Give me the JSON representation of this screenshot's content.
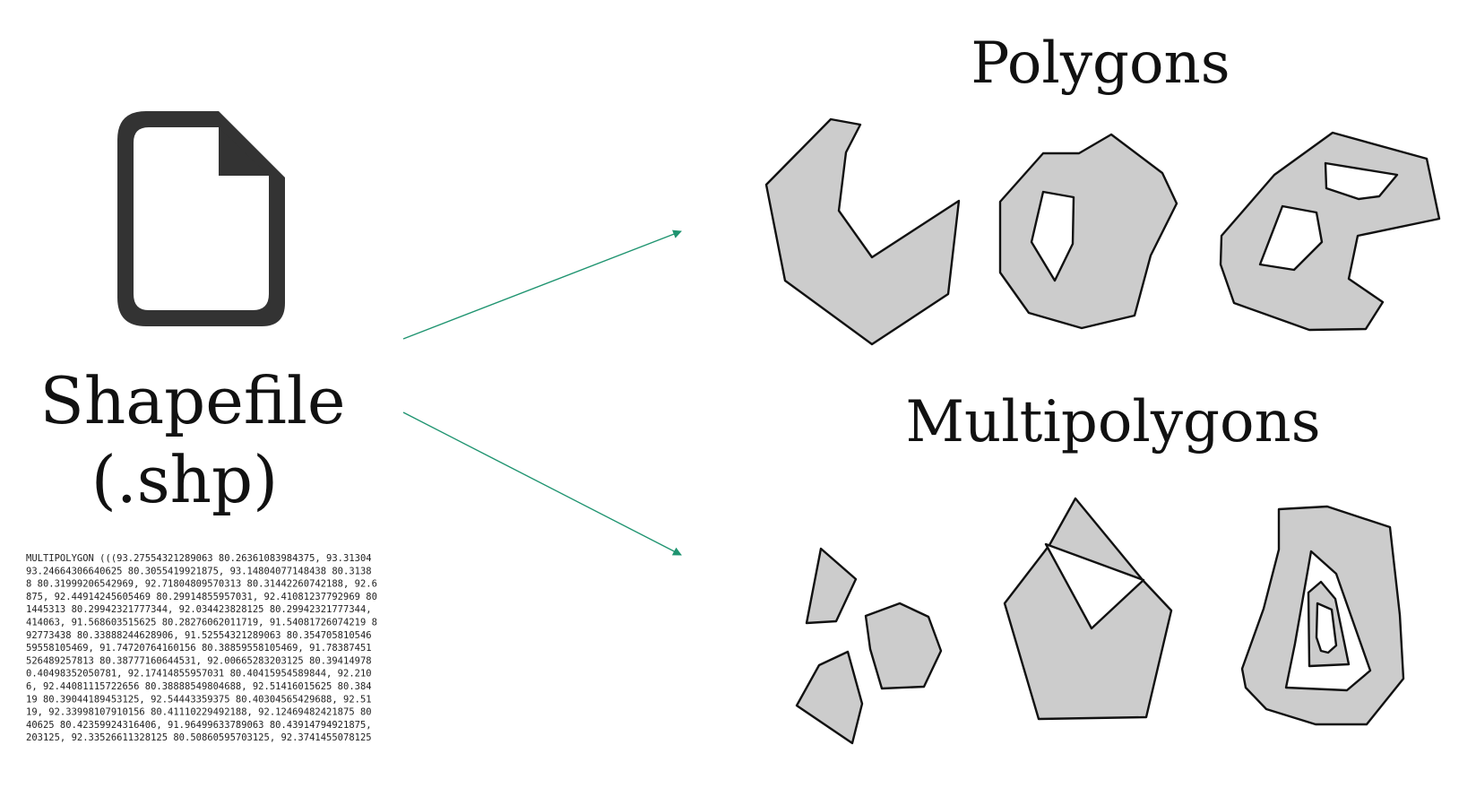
{
  "source": {
    "title_line1": "Shapefile",
    "title_line2": "(.shp)",
    "icon": "file-icon",
    "wkt_lines": [
      "MULTIPOLYGON (((93.27554321289063 80.26361083984375, 93.31304",
      "93.24664306640625 80.3055419921875, 93.14804077148438 80.3138",
      "8 80.31999206542969, 92.71804809570313 80.31442260742188, 92.6",
      "875, 92.44914245605469 80.29914855957031, 92.41081237792969 80",
      "1445313 80.29942321777344, 92.034423828125 80.29942321777344,",
      "414063, 91.568603515625 80.28276062011719, 91.54081726074219 8",
      "92773438 80.33888244628906, 91.52554321289063 80.354705810546",
      "59558105469, 91.74720764160156 80.38859558105469, 91.78387451",
      "526489257813 80.38777160644531, 92.00665283203125 80.39414978",
      "0.40498352050781, 92.17414855957031 80.40415954589844, 92.210",
      "6, 92.44081115722656 80.38888549804688, 92.51416015625 80.384",
      "19 80.39044189453125, 92.54443359375 80.40304565429688, 92.51",
      "19, 92.33998107910156 80.41110229492188, 92.12469482421875 80",
      "40625 80.42359924316406, 91.96499633789063 80.43914794921875,",
      "203125, 92.33526611328125 80.50860595703125, 92.3741455078125"
    ]
  },
  "polygons": {
    "title": "Polygons"
  },
  "multipolygons": {
    "title": "Multipolygons"
  },
  "colors": {
    "shape_fill": "#cccccc",
    "outline": "#111111",
    "arrow": "#1f9470",
    "background": "#ffffff"
  }
}
